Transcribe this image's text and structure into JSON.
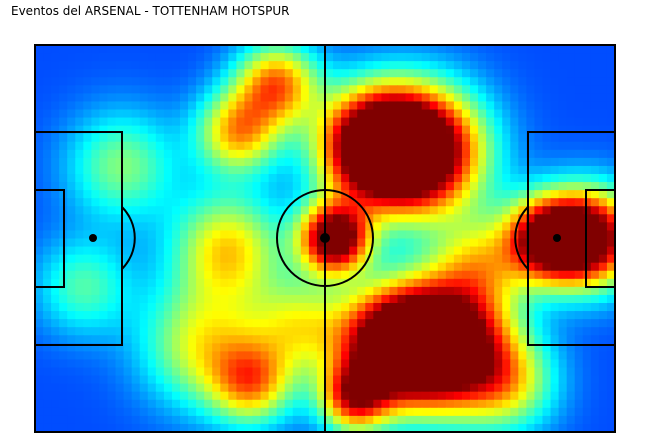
{
  "chart_data": {
    "type": "heatmap",
    "title": "Eventos del ARSENAL - TOTTENHAM HOTSPUR",
    "colormap": "jet",
    "xlim": [
      0,
      120
    ],
    "ylim": [
      0,
      80
    ],
    "grid": false,
    "legend": "none",
    "hotspots": [
      {
        "x": 85,
        "y": 62,
        "intensity": 1.0,
        "spread": 9
      },
      {
        "x": 74,
        "y": 62,
        "intensity": 0.85,
        "spread": 8
      },
      {
        "x": 80,
        "y": 22,
        "intensity": 0.95,
        "spread": 9
      },
      {
        "x": 70,
        "y": 21,
        "intensity": 0.9,
        "spread": 8
      },
      {
        "x": 62,
        "y": 40,
        "intensity": 0.92,
        "spread": 5
      },
      {
        "x": 115,
        "y": 40,
        "intensity": 0.85,
        "spread": 7
      },
      {
        "x": 106,
        "y": 40,
        "intensity": 0.75,
        "spread": 6
      },
      {
        "x": 66,
        "y": 73,
        "intensity": 0.6,
        "spread": 5
      },
      {
        "x": 50,
        "y": 8,
        "intensity": 0.55,
        "spread": 6
      },
      {
        "x": 42,
        "y": 18,
        "intensity": 0.5,
        "spread": 6
      },
      {
        "x": 40,
        "y": 42,
        "intensity": 0.45,
        "spread": 8
      },
      {
        "x": 35,
        "y": 62,
        "intensity": 0.4,
        "spread": 9
      },
      {
        "x": 45,
        "y": 70,
        "intensity": 0.45,
        "spread": 6
      },
      {
        "x": 92,
        "y": 45,
        "intensity": 0.35,
        "spread": 7
      },
      {
        "x": 18,
        "y": 25,
        "intensity": 0.3,
        "spread": 8
      },
      {
        "x": 10,
        "y": 50,
        "intensity": 0.25,
        "spread": 7
      },
      {
        "x": 55,
        "y": 58,
        "intensity": 0.35,
        "spread": 7
      },
      {
        "x": 98,
        "y": 70,
        "intensity": 0.35,
        "spread": 7
      }
    ],
    "background_level": 0.2
  }
}
